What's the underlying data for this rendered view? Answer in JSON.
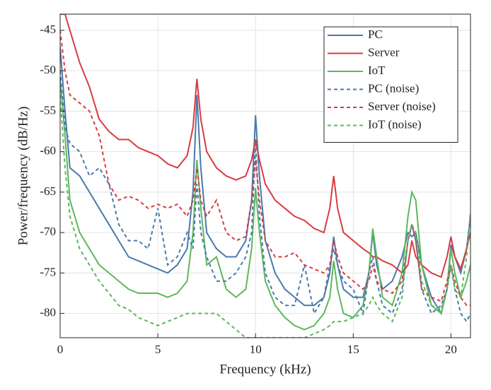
{
  "chart_data": {
    "type": "line",
    "xlabel": "Frequency (kHz)",
    "ylabel": "Power/frequency (dB/Hz)",
    "x": [
      0,
      0.25,
      0.5,
      1,
      1.5,
      2,
      2.5,
      3,
      3.5,
      4,
      4.5,
      5,
      5.5,
      6,
      6.5,
      6.8,
      7,
      7.2,
      7.5,
      8,
      8.5,
      9,
      9.5,
      9.8,
      10,
      10.2,
      10.5,
      11,
      11.5,
      12,
      12.5,
      13,
      13.5,
      13.8,
      14,
      14.2,
      14.5,
      15,
      15.5,
      15.8,
      16,
      16.2,
      16.5,
      17,
      17.5,
      17.8,
      18,
      18.2,
      18.5,
      19,
      19.5,
      19.8,
      20,
      20.2,
      20.5,
      20.8,
      21
    ],
    "xlim": [
      0,
      21
    ],
    "xticks": [
      0,
      5,
      10,
      15,
      20
    ],
    "ylim": [
      -83,
      -43
    ],
    "yticks": [
      -80,
      -75,
      -70,
      -65,
      -60,
      -55,
      -50,
      -45
    ],
    "grid": true,
    "legend": "top-right",
    "series": [
      {
        "name": "PC",
        "color": "#4a7aab",
        "linestyle": "solid",
        "values": [
          -47,
          -55,
          -62,
          -63,
          -65,
          -67,
          -69,
          -71,
          -73,
          -73.5,
          -74,
          -74.5,
          -75,
          -74,
          -72,
          -65,
          -53,
          -62,
          -70,
          -72,
          -73,
          -73,
          -71,
          -66,
          -55.5,
          -63,
          -71,
          -75,
          -77,
          -78,
          -79,
          -79,
          -78,
          -75,
          -70.5,
          -74,
          -77,
          -78,
          -78,
          -75,
          -70,
          -74,
          -77,
          -76,
          -73,
          -70,
          -70.5,
          -70,
          -74,
          -78,
          -80,
          -77,
          -71.5,
          -73,
          -75,
          -72,
          -68
        ]
      },
      {
        "name": "Server",
        "color": "#d93b40",
        "linestyle": "solid",
        "values": [
          -43,
          -43,
          -45,
          -49,
          -52,
          -56,
          -57.5,
          -58.5,
          -58.5,
          -59.5,
          -60,
          -60.5,
          -61.5,
          -62,
          -60.5,
          -57,
          -51,
          -56,
          -60,
          -62,
          -63,
          -63.5,
          -63,
          -61,
          -58.5,
          -61,
          -64,
          -66,
          -67,
          -68,
          -68.5,
          -69.5,
          -70,
          -67,
          -63,
          -67,
          -70,
          -71,
          -72,
          -72.5,
          -73,
          -73,
          -73.5,
          -74,
          -75,
          -74,
          -71,
          -73,
          -74,
          -75,
          -75.5,
          -73,
          -70.5,
          -73,
          -74.5,
          -72,
          -70
        ]
      },
      {
        "name": "IoT",
        "color": "#5cb85c",
        "linestyle": "solid",
        "values": [
          -51,
          -58,
          -66,
          -70,
          -72,
          -74,
          -75,
          -76,
          -77,
          -77.5,
          -77.5,
          -77.5,
          -78,
          -77.5,
          -76,
          -70,
          -61,
          -67,
          -74,
          -73,
          -77,
          -78,
          -77,
          -72,
          -64.5,
          -70,
          -76,
          -79,
          -80.5,
          -81.5,
          -82,
          -81.5,
          -80,
          -78,
          -73.5,
          -77,
          -80,
          -80.5,
          -79,
          -75,
          -69.5,
          -73,
          -78,
          -79,
          -75,
          -68,
          -65,
          -66,
          -74,
          -79,
          -80,
          -77,
          -72,
          -75,
          -78,
          -76,
          -74
        ]
      },
      {
        "name": "PC (noise)",
        "color": "#4a7aab",
        "linestyle": "dashed",
        "values": [
          -50,
          -57,
          -59,
          -60,
          -63,
          -62,
          -64,
          -69,
          -71,
          -71,
          -72,
          -67,
          -74,
          -73,
          -70,
          -72,
          -64,
          -70,
          -73,
          -76,
          -76,
          -75,
          -73,
          -70,
          -59,
          -68,
          -75,
          -78,
          -79,
          -79,
          -74,
          -80,
          -78,
          -74,
          -72,
          -74,
          -76,
          -77,
          -80,
          -75,
          -73,
          -76,
          -79,
          -80,
          -77,
          -71,
          -69,
          -71,
          -77,
          -80,
          -79,
          -77,
          -74,
          -77,
          -80,
          -81,
          -80
        ]
      },
      {
        "name": "Server (noise)",
        "color": "#d93b40",
        "linestyle": "dashed",
        "values": [
          -45,
          -50,
          -53,
          -54,
          -55,
          -58,
          -64,
          -66,
          -65.5,
          -66,
          -67,
          -66.5,
          -67,
          -66.5,
          -68,
          -66,
          -62,
          -66,
          -68,
          -66,
          -70,
          -71,
          -70.5,
          -66,
          -61,
          -66,
          -71,
          -73,
          -73,
          -72.5,
          -74,
          -74.5,
          -75,
          -74,
          -71,
          -73,
          -75,
          -76,
          -77,
          -76,
          -74,
          -76,
          -77,
          -77.5,
          -76,
          -71,
          -69,
          -71,
          -77,
          -78,
          -78.5,
          -76,
          -74,
          -76,
          -78,
          -79,
          -79
        ]
      },
      {
        "name": "IoT (noise)",
        "color": "#5cb85c",
        "linestyle": "dashed",
        "values": [
          -53,
          -62,
          -68,
          -72,
          -74,
          -76,
          -77.5,
          -79,
          -79.5,
          -80.5,
          -81,
          -81.5,
          -81,
          -80.5,
          -80,
          -80,
          -80,
          -80,
          -80,
          -80,
          -81,
          -82,
          -83,
          -83,
          -83,
          -83,
          -83,
          -83,
          -83,
          -83,
          -83,
          -82.5,
          -82,
          -81.5,
          -81,
          -81,
          -81,
          -80.5,
          -80,
          -79,
          -78,
          -79,
          -80,
          -81,
          -78,
          -71,
          -69,
          -70,
          -76,
          -79,
          -79.5,
          -77,
          -74,
          -77,
          -78,
          -73,
          -67.5
        ]
      }
    ]
  }
}
